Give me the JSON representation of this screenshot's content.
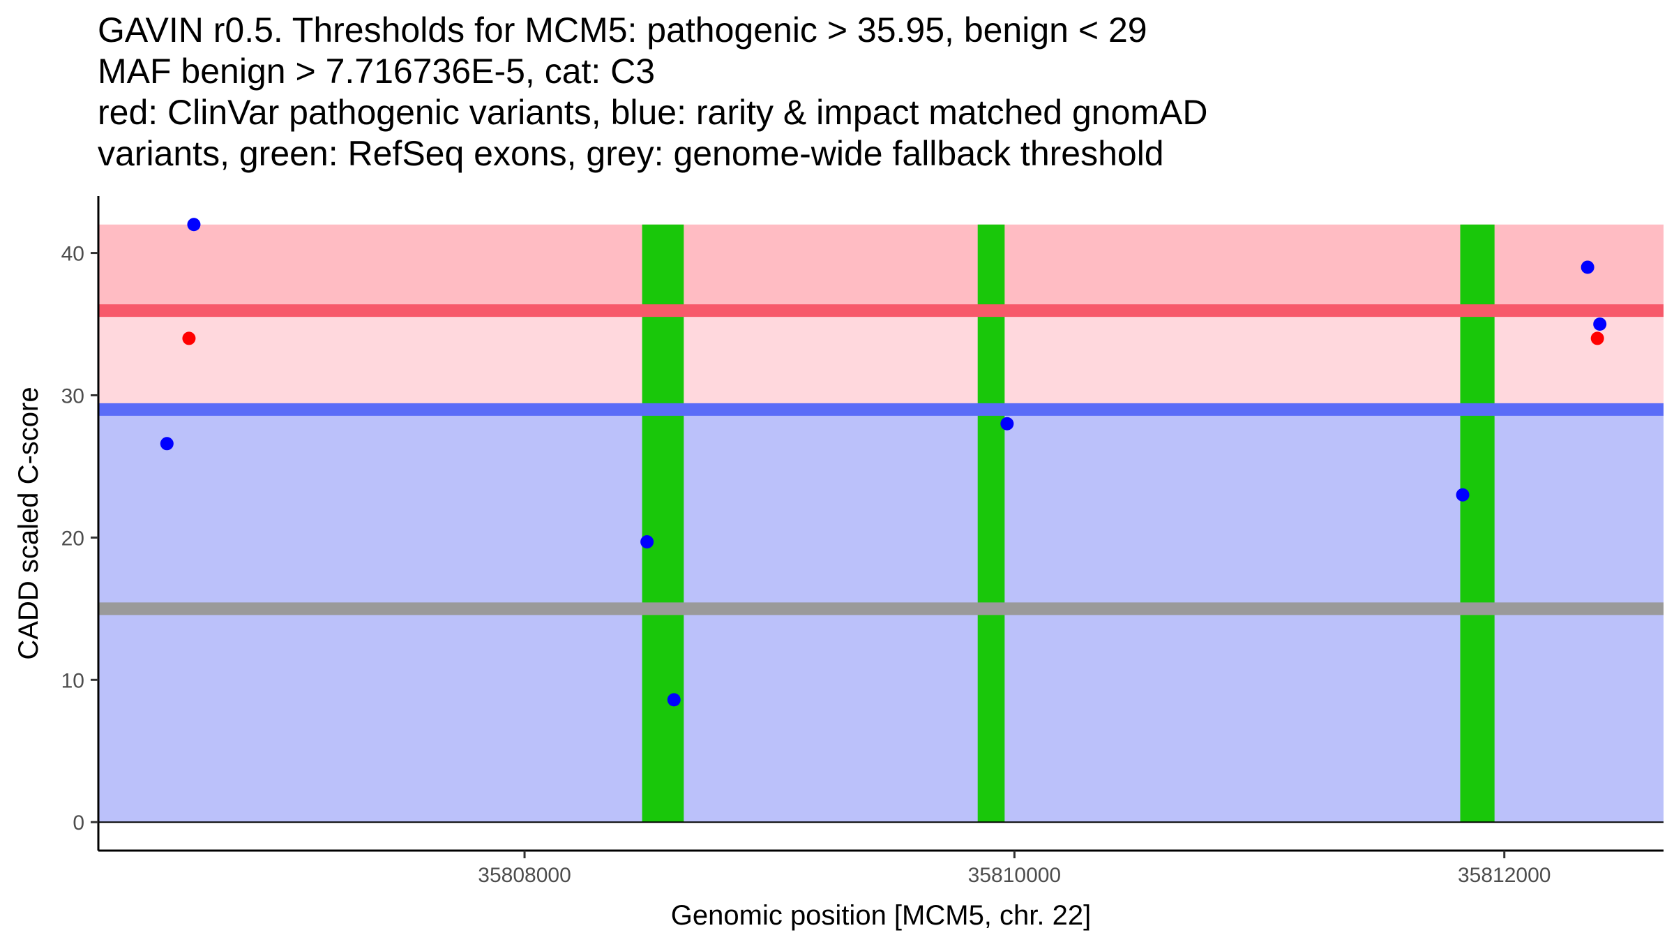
{
  "title_lines": [
    "GAVIN r0.5. Thresholds for MCM5: pathogenic > 35.95, benign < 29",
    "MAF benign > 7.716736E-5, cat: C3",
    "red: ClinVar pathogenic variants, blue: rarity & impact matched gnomAD",
    "variants, green: RefSeq exons, grey: genome-wide fallback threshold"
  ],
  "chart_data": {
    "type": "scatter",
    "xlabel": "Genomic position [MCM5, chr. 22]",
    "ylabel": "CADD scaled C-score",
    "xlim": [
      35806260,
      35812650
    ],
    "ylim": [
      -2,
      44
    ],
    "x_ticks": [
      35808000,
      35810000,
      35812000
    ],
    "y_ticks": [
      0,
      10,
      20,
      30,
      40
    ],
    "bands": [
      {
        "name": "pathogenic-band",
        "ymin": 35.95,
        "ymax": 42,
        "color": "#ffbcc3"
      },
      {
        "name": "uncertain-band",
        "ymin": 29,
        "ymax": 35.95,
        "color": "#ffd8dd"
      },
      {
        "name": "benign-band",
        "ymin": 0,
        "ymax": 29,
        "color": "#bbc1fa"
      }
    ],
    "threshold_lines": [
      {
        "name": "pathogenic-threshold-line",
        "y": 35.95,
        "color": "#f7596a"
      },
      {
        "name": "benign-threshold-line",
        "y": 29,
        "color": "#5a6cf7"
      },
      {
        "name": "fallback-threshold-line",
        "y": 15,
        "color": "#9a9a9a"
      }
    ],
    "exons": [
      {
        "start": 35808480,
        "end": 35808650
      },
      {
        "start": 35809850,
        "end": 35809960
      },
      {
        "start": 35811820,
        "end": 35811960
      }
    ],
    "exon_color": "#19c70a",
    "series": [
      {
        "name": "ClinVar pathogenic variants",
        "color": "#ff0000",
        "x": [
          35806630,
          35812380
        ],
        "y": [
          34,
          34
        ]
      },
      {
        "name": "gnomAD matched variants",
        "color": "#0000ff",
        "x": [
          35806540,
          35806650,
          35808500,
          35808610,
          35809970,
          35811830,
          35812340,
          35812390
        ],
        "y": [
          26.6,
          42,
          19.7,
          8.6,
          28,
          23,
          39,
          35
        ]
      }
    ]
  }
}
